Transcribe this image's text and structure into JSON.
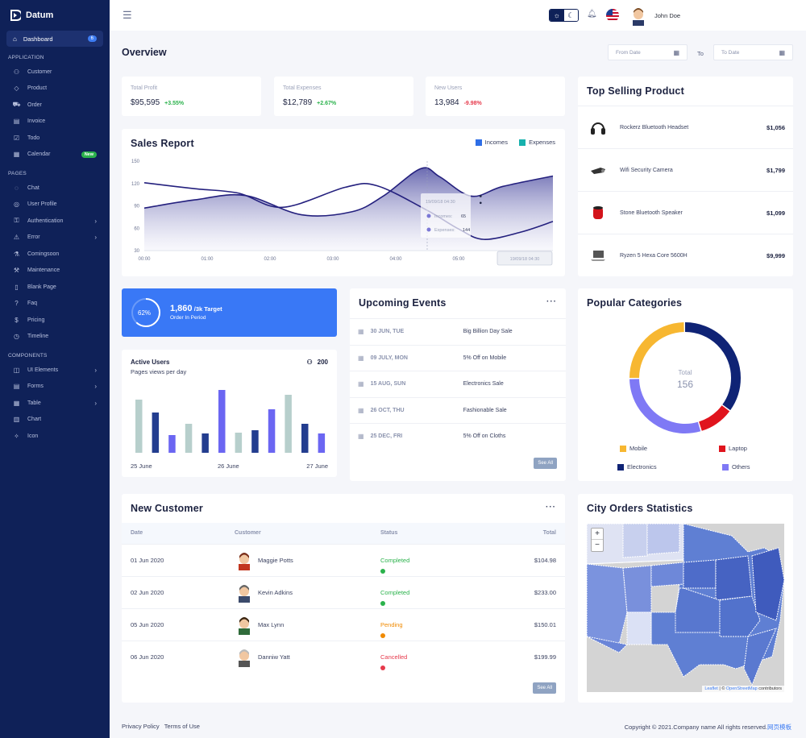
{
  "app": {
    "name": "Datum"
  },
  "sidebar": {
    "active": {
      "label": "Dashboard",
      "badge": "6"
    },
    "sections": [
      {
        "title": "APPLICATION",
        "items": [
          {
            "label": "Customer",
            "icon": "users-icon"
          },
          {
            "label": "Product",
            "icon": "tag-icon"
          },
          {
            "label": "Order",
            "icon": "cart-icon"
          },
          {
            "label": "Invoice",
            "icon": "invoice-icon"
          },
          {
            "label": "Todo",
            "icon": "todo-icon"
          },
          {
            "label": "Calendar",
            "icon": "calendar-icon",
            "badge": "New"
          }
        ]
      },
      {
        "title": "PAGES",
        "items": [
          {
            "label": "Chat",
            "icon": "chat-icon"
          },
          {
            "label": "User Profile",
            "icon": "user-icon"
          },
          {
            "label": "Authentication",
            "icon": "lock-icon",
            "chevron": true
          },
          {
            "label": "Error",
            "icon": "warning-icon",
            "chevron": true
          },
          {
            "label": "Comingsoon",
            "icon": "flask-icon"
          },
          {
            "label": "Maintenance",
            "icon": "wrench-icon"
          },
          {
            "label": "Blank Page",
            "icon": "file-icon"
          },
          {
            "label": "Faq",
            "icon": "help-icon"
          },
          {
            "label": "Pricing",
            "icon": "dollar-icon"
          },
          {
            "label": "Timeline",
            "icon": "clock-icon"
          }
        ]
      },
      {
        "title": "COMPONENTS",
        "items": [
          {
            "label": "UI Elements",
            "icon": "layers-icon",
            "chevron": true
          },
          {
            "label": "Forms",
            "icon": "form-icon",
            "chevron": true
          },
          {
            "label": "Table",
            "icon": "table-icon",
            "chevron": true
          },
          {
            "label": "Chart",
            "icon": "chart-icon"
          },
          {
            "label": "Icon",
            "icon": "sparkle-icon"
          }
        ]
      }
    ]
  },
  "topbar": {
    "user_name": "John Doe"
  },
  "overview": {
    "title": "Overview",
    "from_placeholder": "From Date",
    "to_label": "To",
    "to_placeholder": "To Date"
  },
  "stats": [
    {
      "label": "Total Profit",
      "value": "$95,595",
      "change": "+3.55%",
      "dir": "up"
    },
    {
      "label": "Total Expenses",
      "value": "$12,789",
      "change": "+2.67%",
      "dir": "up"
    },
    {
      "label": "New Users",
      "value": "13,984",
      "change": "-9.98%",
      "dir": "down"
    }
  ],
  "sales_report": {
    "title": "Sales Report",
    "legend": [
      {
        "name": "Incomes",
        "color": "#2e6ee6"
      },
      {
        "name": "Expenses",
        "color": "#17b1ad"
      }
    ],
    "tooltip": {
      "date": "19/09/18 04:30",
      "incomes_label": "Incomes:",
      "incomes_value": "65",
      "expenses_label": "Expenses:",
      "expenses_value": "144"
    },
    "x_tooltip": "19/09/18 04:30"
  },
  "chart_data": [
    {
      "type": "area",
      "title": "Sales Report",
      "x": [
        "00:00",
        "01:00",
        "02:00",
        "03:00",
        "04:00",
        "05:00"
      ],
      "ylim": [
        30,
        150
      ],
      "yticks": [
        30,
        60,
        90,
        120,
        150
      ],
      "series": [
        {
          "name": "Incomes",
          "points": [
            [
              0,
              87
            ],
            [
              0.8,
              98
            ],
            [
              1.6,
              104
            ],
            [
              2.5,
              78
            ],
            [
              3.3,
              82
            ],
            [
              3.8,
              103
            ],
            [
              4.4,
              140
            ],
            [
              4.7,
              129
            ],
            [
              5.2,
              103
            ],
            [
              5.7,
              116
            ],
            [
              6.5,
              130
            ]
          ]
        },
        {
          "name": "Expenses",
          "points": [
            [
              0,
              121
            ],
            [
              0.8,
              113
            ],
            [
              1.5,
              107
            ],
            [
              2.2,
              88
            ],
            [
              3.2,
              115
            ],
            [
              3.7,
              117
            ],
            [
              4.5,
              84
            ],
            [
              5.0,
              59
            ],
            [
              5.4,
              45
            ],
            [
              6.0,
              55
            ],
            [
              6.5,
              69
            ]
          ]
        }
      ]
    },
    {
      "type": "bar",
      "title": "Active Users",
      "categories": [
        "1",
        "2",
        "3",
        "4",
        "5",
        "6",
        "7",
        "8",
        "9",
        "10",
        "11",
        "12"
      ],
      "x_ticks": [
        "25 June",
        "26 June",
        "27 June"
      ],
      "values": [
        66,
        50,
        22,
        36,
        24,
        78,
        25,
        28,
        54,
        72,
        36,
        24
      ],
      "colors": [
        "#b7cfcc",
        "#233d8f",
        "#6b66f2",
        "#b7cfcc",
        "#233d8f",
        "#6b66f2",
        "#b7cfcc",
        "#233d8f",
        "#6b66f2",
        "#b7cfcc",
        "#233d8f",
        "#6b66f2"
      ],
      "ylim": [
        0,
        80
      ]
    },
    {
      "type": "pie",
      "title": "Popular Categories",
      "center_label": "Total",
      "center_value": "156",
      "slices": [
        {
          "name": "Mobile",
          "value": 39,
          "color": "#f7b731"
        },
        {
          "name": "Electronics",
          "value": 55,
          "color": "#0f2375"
        },
        {
          "name": "Laptop",
          "value": 16,
          "color": "#e0141d"
        },
        {
          "name": "Others",
          "value": 46,
          "color": "#7f79f5"
        }
      ]
    }
  ],
  "target": {
    "percent": "62%",
    "value": "1,860",
    "suffix": "/3k Target",
    "subtitle": "Order In Period"
  },
  "active_users": {
    "title": "Active Users",
    "subtitle": "Pages views per day",
    "count": "200"
  },
  "top_selling": {
    "title": "Top Selling Product",
    "items": [
      {
        "name": "Rockerz Bluetooth Headset",
        "price": "$1,056",
        "icon": "headphones-icon"
      },
      {
        "name": "Wifi Security Camera",
        "price": "$1,799",
        "icon": "camera-icon"
      },
      {
        "name": "Stone Bluetooth Speaker",
        "price": "$1,099",
        "icon": "speaker-icon"
      },
      {
        "name": "Ryzen 5 Hexa Core 5600H",
        "price": "$9,999",
        "icon": "laptop-icon"
      }
    ]
  },
  "events": {
    "title": "Upcoming Events",
    "items": [
      {
        "date": "30 JUN, TUE",
        "name": "Big Billion Day Sale"
      },
      {
        "date": "09 JULY, MON",
        "name": "5% Off on Mobile"
      },
      {
        "date": "15 AUG, SUN",
        "name": "Electronics Sale"
      },
      {
        "date": "26 OCT, THU",
        "name": "Fashionable Sale"
      },
      {
        "date": "25 DEC, FRI",
        "name": "5% Off on Cloths"
      }
    ],
    "see_all": "See All"
  },
  "categories": {
    "title": "Popular Categories"
  },
  "customers": {
    "title": "New Customer",
    "headers": [
      "Date",
      "Customer",
      "Status",
      "Total"
    ],
    "rows": [
      {
        "date": "01 Jun 2020",
        "name": "Maggie Potts",
        "status": "Completed",
        "status_color": "#2bb24c",
        "total": "$104.98"
      },
      {
        "date": "02 Jun 2020",
        "name": "Kevin Adkins",
        "status": "Completed",
        "status_color": "#2bb24c",
        "total": "$233.00"
      },
      {
        "date": "05 Jun 2020",
        "name": "Max Lynn",
        "status": "Pending",
        "status_color": "#f08a00",
        "total": "$150.01"
      },
      {
        "date": "06 Jun 2020",
        "name": "Danniw Yatt",
        "status": "Cancelled",
        "status_color": "#e63a4c",
        "total": "$199.99"
      }
    ],
    "see_all": "See All"
  },
  "city_orders": {
    "title": "City Orders Statistics",
    "zoom_in": "+",
    "zoom_out": "−",
    "attribution_leaflet": "Leaflet",
    "attribution_sep": " | © ",
    "attribution_osm": "OpenStreetMap",
    "attribution_tail": " contributors"
  },
  "footer": {
    "privacy": "Privacy Policy",
    "terms": "Terms of Use",
    "copyright": "Copyright © 2021.Company name All rights reserved.",
    "link": "网页模板"
  }
}
